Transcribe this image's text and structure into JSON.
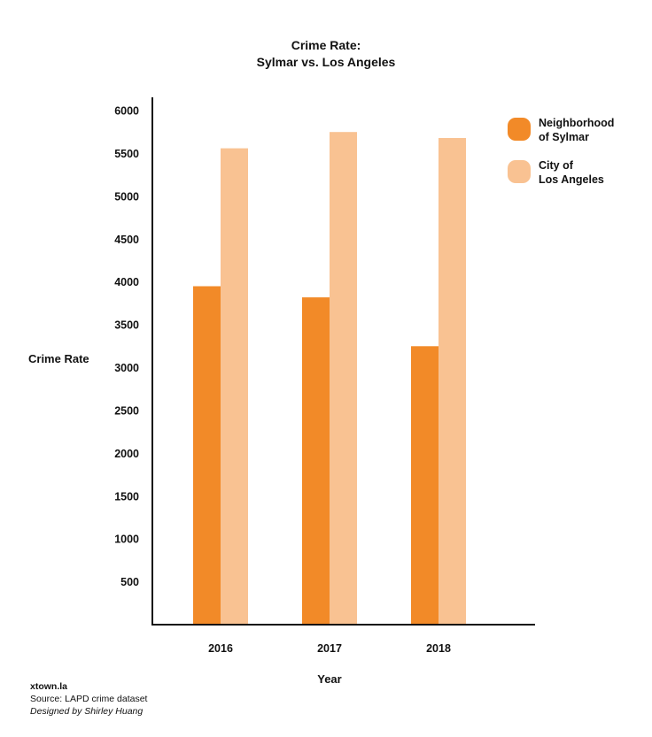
{
  "title_line1": "Crime Rate:",
  "title_line2": "Sylmar vs. Los Angeles",
  "chart_data": {
    "type": "bar",
    "categories": [
      "2016",
      "2017",
      "2018"
    ],
    "series": [
      {
        "name": "Neighborhood\nof Sylmar",
        "values": [
          3950,
          3820,
          3250
        ],
        "color": "#F28A28"
      },
      {
        "name": "City of\nLos Angeles",
        "values": [
          5560,
          5750,
          5680
        ],
        "color": "#F9C292"
      }
    ],
    "xlabel": "Year",
    "ylabel": "Crime Rate",
    "yticks": [
      500,
      1000,
      1500,
      2000,
      2500,
      3000,
      3500,
      4000,
      4500,
      5000,
      5500,
      6000
    ],
    "ylim": [
      0,
      6000
    ],
    "grid": false,
    "legend_position": "top-right"
  },
  "credits": {
    "site": "xtown.la",
    "source": "Source: LAPD crime dataset",
    "designer": "Designed by Shirley Huang"
  }
}
